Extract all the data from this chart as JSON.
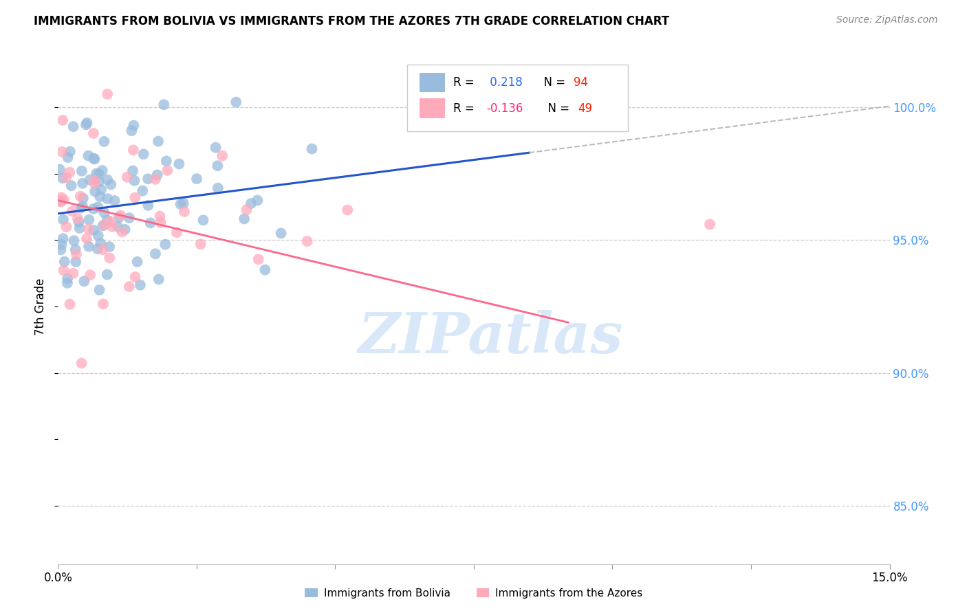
{
  "title": "IMMIGRANTS FROM BOLIVIA VS IMMIGRANTS FROM THE AZORES 7TH GRADE CORRELATION CHART",
  "source": "Source: ZipAtlas.com",
  "ylabel": "7th Grade",
  "xmin": 0.0,
  "xmax": 0.15,
  "ymin": 0.828,
  "ymax": 1.022,
  "color_bolivia": "#99BBDD",
  "color_azores": "#FFAABB",
  "color_bolivia_line": "#2255CC",
  "color_azores_line": "#FF6688",
  "color_dashed": "#BBBBBB",
  "color_right_axis": "#4499FF",
  "watermark_color": "#D8E8F8",
  "r_bolivia": 0.218,
  "n_bolivia": 94,
  "r_azores": -0.136,
  "n_azores": 49
}
